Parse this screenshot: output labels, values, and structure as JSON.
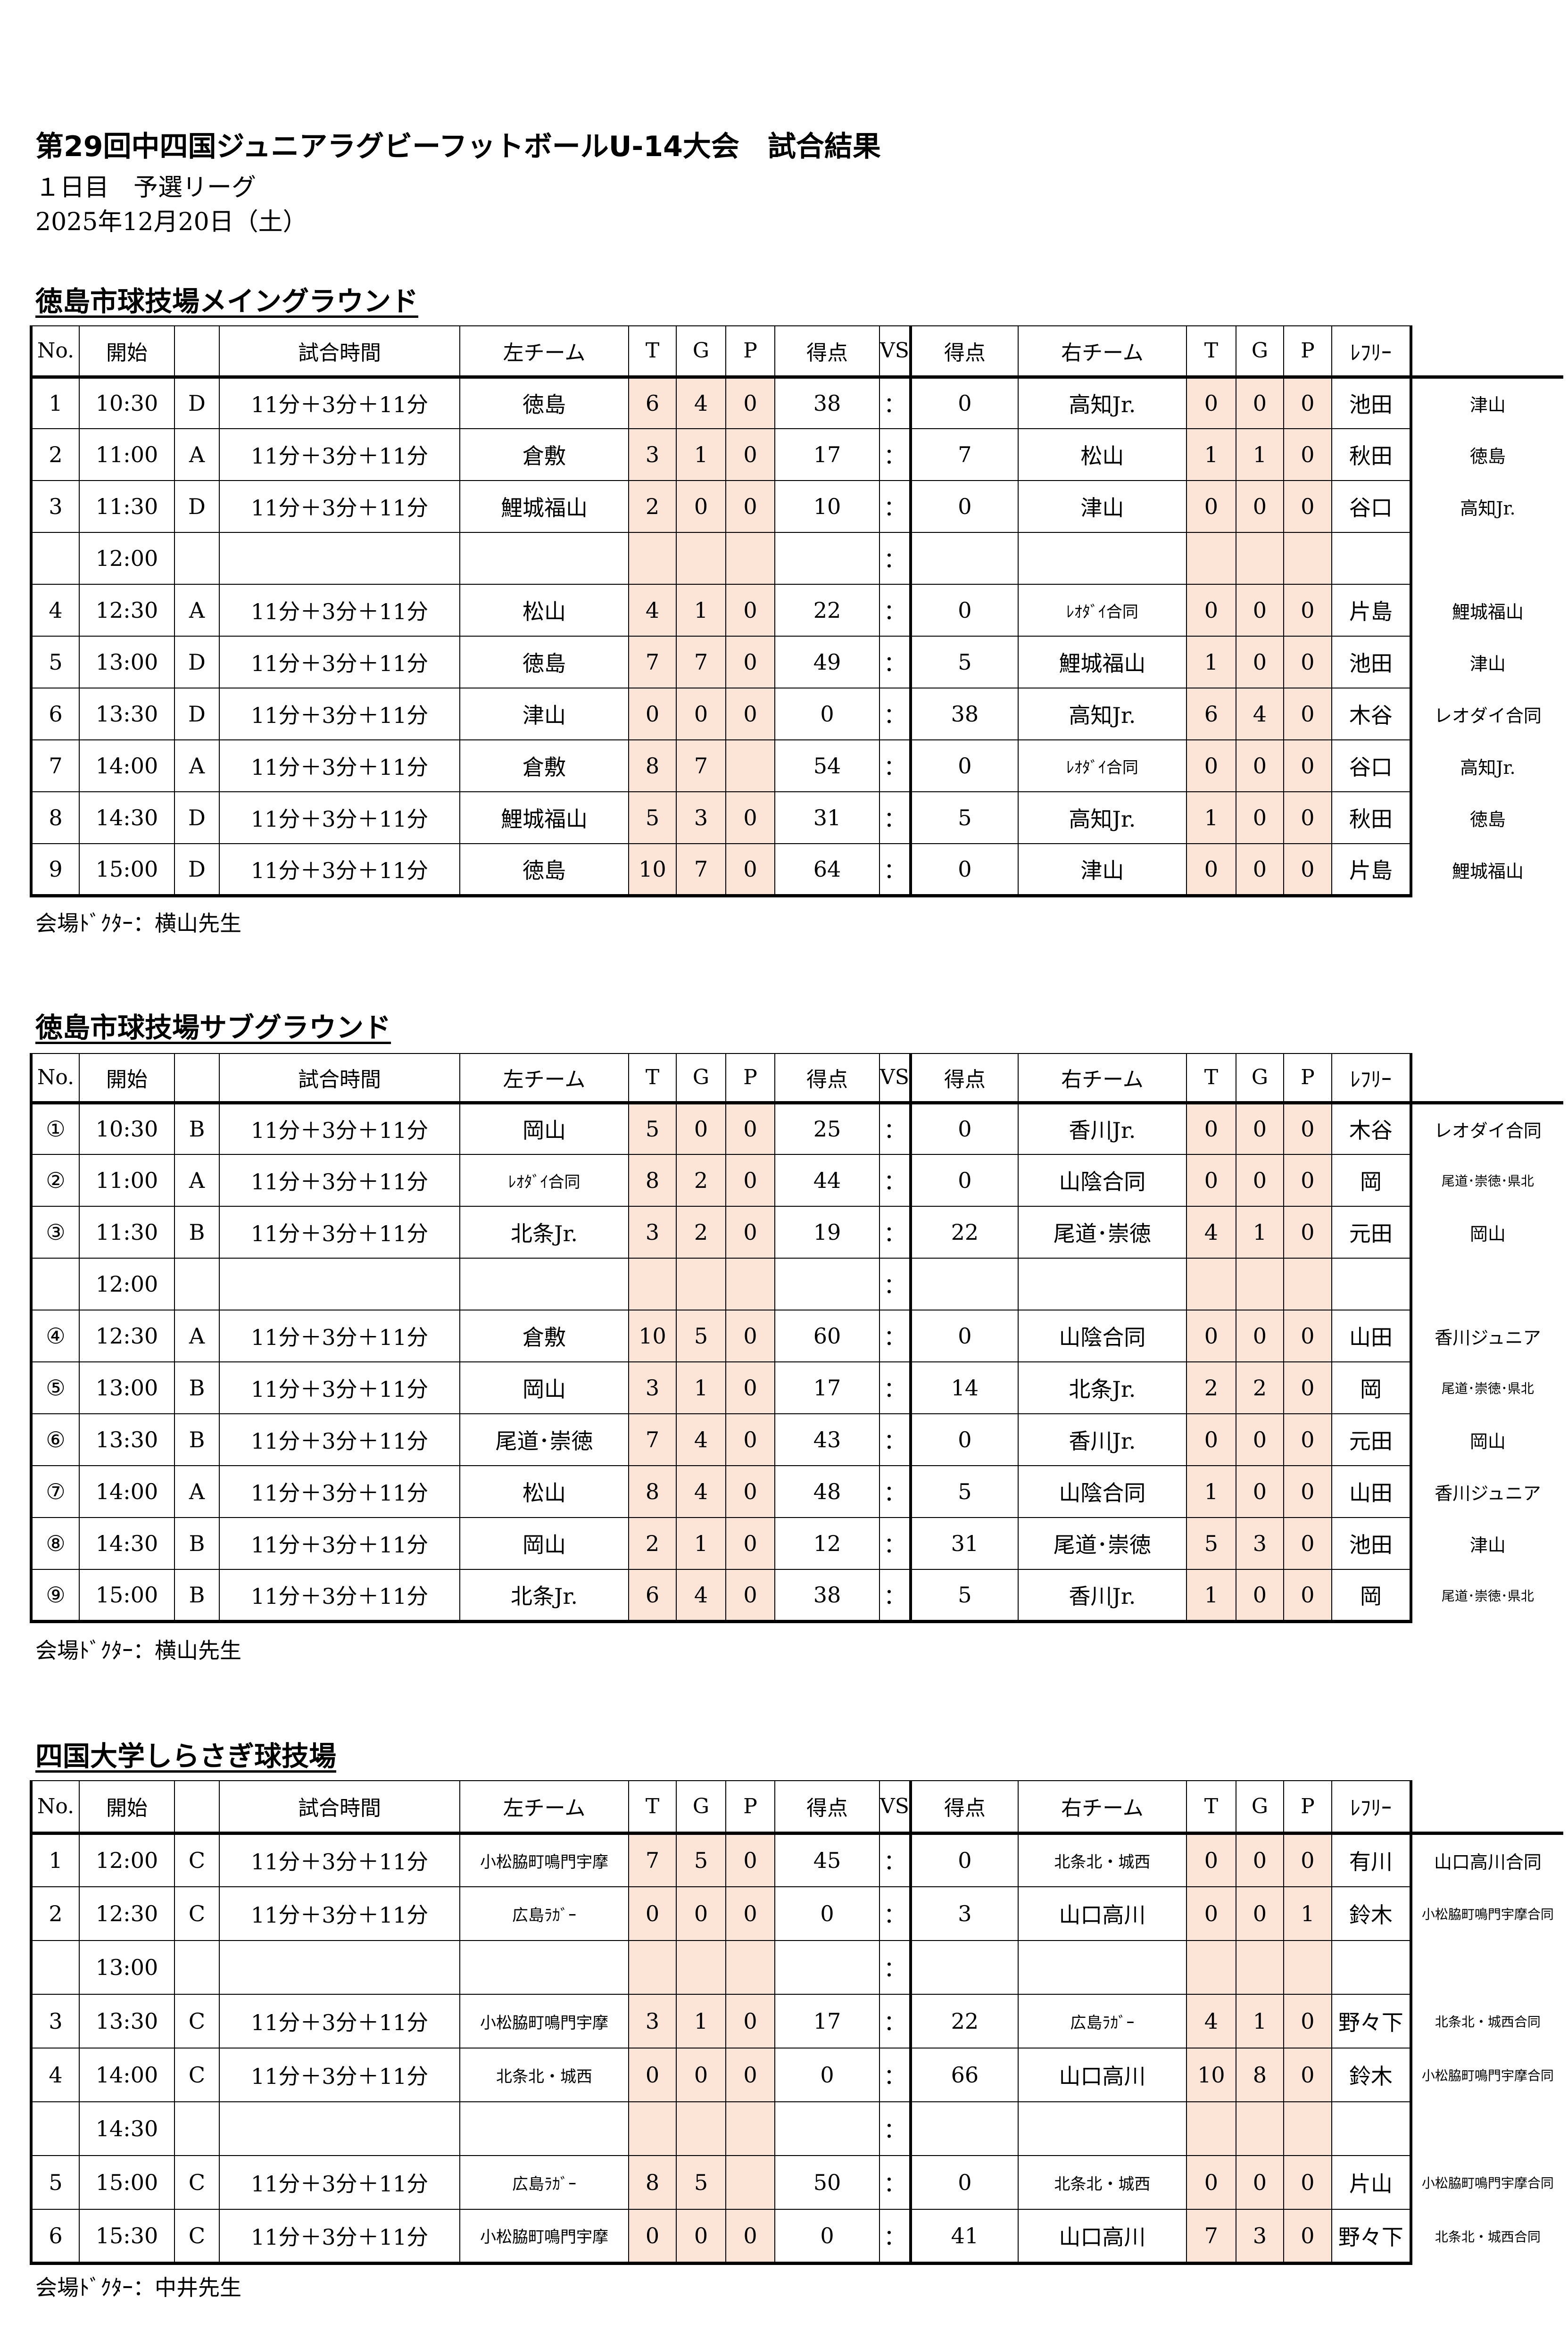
{
  "title": "第29回中四国ジュニアラグビーフットボールU-14大会　試合結果",
  "subtitle": "１日目　予選リーグ",
  "date": "2025年12月20日（土）",
  "headers": [
    "No.",
    "開始",
    "",
    "試合時間",
    "左チーム",
    "T",
    "G",
    "P",
    "得点",
    "VS",
    "得点",
    "右チーム",
    "T",
    "G",
    "P",
    "ﾚﾌﾘｰ",
    ""
  ],
  "venues": [
    {
      "name": "徳島市球技場メイングラウンド",
      "doctor": "会場ﾄﾞｸﾀｰ：横山先生",
      "rows": [
        [
          "1",
          "10:30",
          "D",
          "11分＋3分＋11分",
          "徳島",
          "6",
          "4",
          "0",
          "38",
          "：",
          "0",
          "高知Jr.",
          "0",
          "0",
          "0",
          "池田",
          "津山"
        ],
        [
          "2",
          "11:00",
          "A",
          "11分＋3分＋11分",
          "倉敷",
          "3",
          "1",
          "0",
          "17",
          "：",
          "7",
          "松山",
          "1",
          "1",
          "0",
          "秋田",
          "徳島"
        ],
        [
          "3",
          "11:30",
          "D",
          "11分＋3分＋11分",
          "鯉城福山",
          "2",
          "0",
          "0",
          "10",
          "：",
          "0",
          "津山",
          "0",
          "0",
          "0",
          "谷口",
          "高知Jr."
        ],
        [
          "",
          "12:00",
          "",
          "",
          "",
          "",
          "",
          "",
          "",
          "：",
          "",
          "",
          "",
          "",
          "",
          "",
          ""
        ],
        [
          "4",
          "12:30",
          "A",
          "11分＋3分＋11分",
          "松山",
          "4",
          "1",
          "0",
          "22",
          "：",
          "0",
          "ﾚｵﾀﾞｲ合同",
          "0",
          "0",
          "0",
          "片島",
          "鯉城福山"
        ],
        [
          "5",
          "13:00",
          "D",
          "11分＋3分＋11分",
          "徳島",
          "7",
          "7",
          "0",
          "49",
          "：",
          "5",
          "鯉城福山",
          "1",
          "0",
          "0",
          "池田",
          "津山"
        ],
        [
          "6",
          "13:30",
          "D",
          "11分＋3分＋11分",
          "津山",
          "0",
          "0",
          "0",
          "0",
          "：",
          "38",
          "高知Jr.",
          "6",
          "4",
          "0",
          "木谷",
          "レオダイ合同"
        ],
        [
          "7",
          "14:00",
          "A",
          "11分＋3分＋11分",
          "倉敷",
          "8",
          "7",
          "",
          "54",
          "：",
          "0",
          "ﾚｵﾀﾞｲ合同",
          "0",
          "0",
          "0",
          "谷口",
          "高知Jr."
        ],
        [
          "8",
          "14:30",
          "D",
          "11分＋3分＋11分",
          "鯉城福山",
          "5",
          "3",
          "0",
          "31",
          "：",
          "5",
          "高知Jr.",
          "1",
          "0",
          "0",
          "秋田",
          "徳島"
        ],
        [
          "9",
          "15:00",
          "D",
          "11分＋3分＋11分",
          "徳島",
          "10",
          "7",
          "0",
          "64",
          "：",
          "0",
          "津山",
          "0",
          "0",
          "0",
          "片島",
          "鯉城福山"
        ]
      ]
    },
    {
      "name": "徳島市球技場サブグラウンド",
      "doctor": "会場ﾄﾞｸﾀｰ：横山先生",
      "rows": [
        [
          "①",
          "10:30",
          "B",
          "11分＋3分＋11分",
          "岡山",
          "5",
          "0",
          "0",
          "25",
          "：",
          "0",
          "香川Jr.",
          "0",
          "0",
          "0",
          "木谷",
          "レオダイ合同"
        ],
        [
          "②",
          "11:00",
          "A",
          "11分＋3分＋11分",
          "ﾚｵﾀﾞｲ合同",
          "8",
          "2",
          "0",
          "44",
          "：",
          "0",
          "山陰合同",
          "0",
          "0",
          "0",
          "岡",
          "尾道･崇徳･県北"
        ],
        [
          "③",
          "11:30",
          "B",
          "11分＋3分＋11分",
          "北条Jr.",
          "3",
          "2",
          "0",
          "19",
          "：",
          "22",
          "尾道･崇徳",
          "4",
          "1",
          "0",
          "元田",
          "岡山"
        ],
        [
          "",
          "12:00",
          "",
          "",
          "",
          "",
          "",
          "",
          "",
          "：",
          "",
          "",
          "",
          "",
          "",
          "",
          ""
        ],
        [
          "④",
          "12:30",
          "A",
          "11分＋3分＋11分",
          "倉敷",
          "10",
          "5",
          "0",
          "60",
          "：",
          "0",
          "山陰合同",
          "0",
          "0",
          "0",
          "山田",
          "香川ジュニア"
        ],
        [
          "⑤",
          "13:00",
          "B",
          "11分＋3分＋11分",
          "岡山",
          "3",
          "1",
          "0",
          "17",
          "：",
          "14",
          "北条Jr.",
          "2",
          "2",
          "0",
          "岡",
          "尾道･崇徳･県北"
        ],
        [
          "⑥",
          "13:30",
          "B",
          "11分＋3分＋11分",
          "尾道･崇徳",
          "7",
          "4",
          "0",
          "43",
          "：",
          "0",
          "香川Jr.",
          "0",
          "0",
          "0",
          "元田",
          "岡山"
        ],
        [
          "⑦",
          "14:00",
          "A",
          "11分＋3分＋11分",
          "松山",
          "8",
          "4",
          "0",
          "48",
          "：",
          "5",
          "山陰合同",
          "1",
          "0",
          "0",
          "山田",
          "香川ジュニア"
        ],
        [
          "⑧",
          "14:30",
          "B",
          "11分＋3分＋11分",
          "岡山",
          "2",
          "1",
          "0",
          "12",
          "：",
          "31",
          "尾道･崇徳",
          "5",
          "3",
          "0",
          "池田",
          "津山"
        ],
        [
          "⑨",
          "15:00",
          "B",
          "11分＋3分＋11分",
          "北条Jr.",
          "6",
          "4",
          "0",
          "38",
          "：",
          "5",
          "香川Jr.",
          "1",
          "0",
          "0",
          "岡",
          "尾道･崇徳･県北"
        ]
      ]
    },
    {
      "name": "四国大学しらさぎ球技場",
      "doctor": "会場ﾄﾞｸﾀｰ：中井先生",
      "rows": [
        [
          "1",
          "12:00",
          "C",
          "11分＋3分＋11分",
          "小松脇町鳴門宇摩",
          "7",
          "5",
          "0",
          "45",
          "：",
          "0",
          "北条北・城西",
          "0",
          "0",
          "0",
          "有川",
          "山口高川合同"
        ],
        [
          "2",
          "12:30",
          "C",
          "11分＋3分＋11分",
          "広島ﾗｶﾞｰ",
          "0",
          "0",
          "0",
          "0",
          "：",
          "3",
          "山口高川",
          "0",
          "0",
          "1",
          "鈴木",
          "小松脇町鳴門宇摩合同"
        ],
        [
          "",
          "13:00",
          "",
          "",
          "",
          "",
          "",
          "",
          "",
          "：",
          "",
          "",
          "",
          "",
          "",
          "",
          ""
        ],
        [
          "3",
          "13:30",
          "C",
          "11分＋3分＋11分",
          "小松脇町鳴門宇摩",
          "3",
          "1",
          "0",
          "17",
          "：",
          "22",
          "広島ﾗｶﾞｰ",
          "4",
          "1",
          "0",
          "野々下",
          "北条北・城西合同"
        ],
        [
          "4",
          "14:00",
          "C",
          "11分＋3分＋11分",
          "北条北・城西",
          "0",
          "0",
          "0",
          "0",
          "：",
          "66",
          "山口高川",
          "10",
          "8",
          "0",
          "鈴木",
          "小松脇町鳴門宇摩合同"
        ],
        [
          "",
          "14:30",
          "",
          "",
          "",
          "",
          "",
          "",
          "",
          "：",
          "",
          "",
          "",
          "",
          "",
          "",
          ""
        ],
        [
          "5",
          "15:00",
          "C",
          "11分＋3分＋11分",
          "広島ﾗｶﾞｰ",
          "8",
          "5",
          "",
          "50",
          "：",
          "0",
          "北条北・城西",
          "0",
          "0",
          "0",
          "片山",
          "小松脇町鳴門宇摩合同"
        ],
        [
          "6",
          "15:30",
          "C",
          "11分＋3分＋11分",
          "小松脇町鳴門宇摩",
          "0",
          "0",
          "0",
          "0",
          "：",
          "41",
          "山口高川",
          "7",
          "3",
          "0",
          "野々下",
          "北条北・城西合同"
        ]
      ]
    }
  ],
  "colors": {
    "score_shade": "#fce4d6",
    "border": "#000000"
  }
}
